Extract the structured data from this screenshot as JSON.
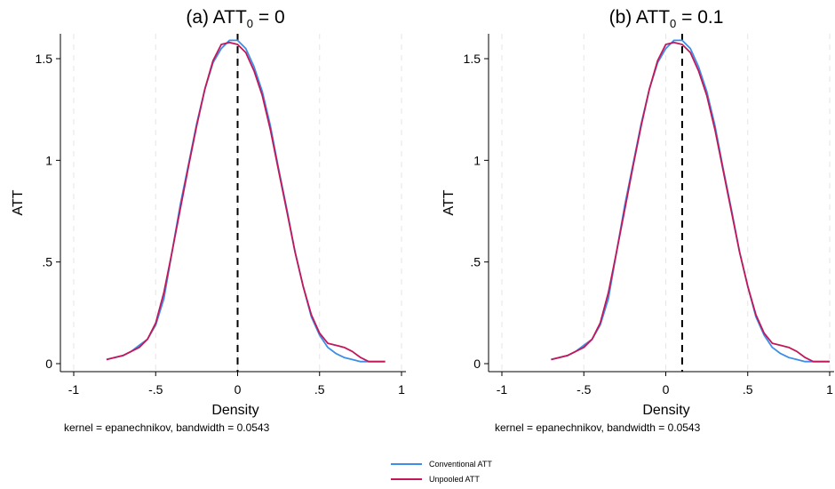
{
  "chart_data": [
    {
      "type": "line",
      "title": {
        "prefix": "(a) ATT",
        "subscript": "0",
        "suffix": " = 0"
      },
      "xlabel": "Density",
      "ylabel": "ATT",
      "xlim": [
        -1,
        1
      ],
      "ylim": [
        0,
        1.65
      ],
      "x_ticks": [
        -1,
        -0.5,
        0,
        0.5,
        1
      ],
      "x_tick_labels": [
        "-1",
        "-.5",
        "0",
        ".5",
        "1"
      ],
      "y_ticks": [
        0,
        0.5,
        1,
        1.5
      ],
      "y_tick_labels": [
        "0",
        ".5",
        "1",
        "1.5"
      ],
      "vertical_reference_line": 0,
      "note": "kernel = epanechnikov, bandwidth = 0.0543",
      "grid": "dashed vertical gridlines at x ticks",
      "series": [
        {
          "name": "Conventional ATT",
          "color": "#3d8ee8",
          "x": [
            -0.8,
            -0.75,
            -0.7,
            -0.65,
            -0.6,
            -0.55,
            -0.5,
            -0.45,
            -0.4,
            -0.35,
            -0.3,
            -0.25,
            -0.2,
            -0.15,
            -0.1,
            -0.05,
            0,
            0.05,
            0.1,
            0.15,
            0.2,
            0.25,
            0.3,
            0.35,
            0.4,
            0.45,
            0.5,
            0.55,
            0.6,
            0.65,
            0.7,
            0.75,
            0.8,
            0.85,
            0.9
          ],
          "y": [
            0.02,
            0.03,
            0.04,
            0.06,
            0.09,
            0.12,
            0.19,
            0.32,
            0.55,
            0.78,
            0.98,
            1.18,
            1.35,
            1.48,
            1.55,
            1.59,
            1.59,
            1.55,
            1.46,
            1.34,
            1.17,
            0.96,
            0.76,
            0.55,
            0.38,
            0.23,
            0.14,
            0.08,
            0.05,
            0.03,
            0.02,
            0.01,
            0.01,
            0.01,
            0.01
          ]
        },
        {
          "name": "Unpooled ATT",
          "color": "#c2185b",
          "x": [
            -0.8,
            -0.75,
            -0.7,
            -0.65,
            -0.6,
            -0.55,
            -0.5,
            -0.45,
            -0.4,
            -0.35,
            -0.3,
            -0.25,
            -0.2,
            -0.15,
            -0.1,
            -0.05,
            0,
            0.05,
            0.1,
            0.15,
            0.2,
            0.25,
            0.3,
            0.35,
            0.4,
            0.45,
            0.5,
            0.55,
            0.6,
            0.65,
            0.7,
            0.75,
            0.8,
            0.85,
            0.9
          ],
          "y": [
            0.02,
            0.03,
            0.04,
            0.06,
            0.08,
            0.12,
            0.2,
            0.35,
            0.55,
            0.76,
            0.97,
            1.17,
            1.35,
            1.49,
            1.57,
            1.58,
            1.57,
            1.53,
            1.44,
            1.32,
            1.15,
            0.95,
            0.75,
            0.55,
            0.38,
            0.24,
            0.15,
            0.1,
            0.09,
            0.08,
            0.06,
            0.03,
            0.01,
            0.01,
            0.01
          ]
        }
      ]
    },
    {
      "type": "line",
      "title": {
        "prefix": "(b) ATT",
        "subscript": "0",
        "suffix": " = 0.1"
      },
      "xlabel": "Density",
      "ylabel": "ATT",
      "xlim": [
        -1,
        1
      ],
      "ylim": [
        0,
        1.65
      ],
      "x_ticks": [
        -1,
        -0.5,
        0,
        0.5,
        1
      ],
      "x_tick_labels": [
        "-1",
        "-.5",
        "0",
        ".5",
        "1"
      ],
      "y_ticks": [
        0,
        0.5,
        1,
        1.5
      ],
      "y_tick_labels": [
        "0",
        ".5",
        "1",
        "1.5"
      ],
      "vertical_reference_line": 0.1,
      "note": "kernel = epanechnikov, bandwidth = 0.0543",
      "grid": "dashed vertical gridlines at x ticks",
      "series": [
        {
          "name": "Conventional ATT",
          "color": "#3d8ee8",
          "x": [
            -0.7,
            -0.65,
            -0.6,
            -0.55,
            -0.5,
            -0.45,
            -0.4,
            -0.35,
            -0.3,
            -0.25,
            -0.2,
            -0.15,
            -0.1,
            -0.05,
            0,
            0.05,
            0.1,
            0.15,
            0.2,
            0.25,
            0.3,
            0.35,
            0.4,
            0.45,
            0.5,
            0.55,
            0.6,
            0.65,
            0.7,
            0.75,
            0.8,
            0.85,
            0.9,
            0.95,
            1.0
          ],
          "y": [
            0.02,
            0.03,
            0.04,
            0.06,
            0.09,
            0.12,
            0.19,
            0.32,
            0.55,
            0.78,
            0.98,
            1.18,
            1.35,
            1.48,
            1.55,
            1.59,
            1.59,
            1.55,
            1.46,
            1.34,
            1.17,
            0.96,
            0.76,
            0.55,
            0.38,
            0.23,
            0.14,
            0.08,
            0.05,
            0.03,
            0.02,
            0.01,
            0.01,
            0.01,
            0.01
          ]
        },
        {
          "name": "Unpooled ATT",
          "color": "#c2185b",
          "x": [
            -0.7,
            -0.65,
            -0.6,
            -0.55,
            -0.5,
            -0.45,
            -0.4,
            -0.35,
            -0.3,
            -0.25,
            -0.2,
            -0.15,
            -0.1,
            -0.05,
            0,
            0.05,
            0.1,
            0.15,
            0.2,
            0.25,
            0.3,
            0.35,
            0.4,
            0.45,
            0.5,
            0.55,
            0.6,
            0.65,
            0.7,
            0.75,
            0.8,
            0.85,
            0.9,
            0.95,
            1.0
          ],
          "y": [
            0.02,
            0.03,
            0.04,
            0.06,
            0.08,
            0.12,
            0.2,
            0.35,
            0.55,
            0.76,
            0.97,
            1.17,
            1.35,
            1.49,
            1.57,
            1.58,
            1.57,
            1.53,
            1.44,
            1.32,
            1.15,
            0.95,
            0.75,
            0.55,
            0.38,
            0.24,
            0.15,
            0.1,
            0.09,
            0.08,
            0.06,
            0.03,
            0.01,
            0.01,
            0.01
          ]
        }
      ]
    }
  ],
  "legend": {
    "placement": "bottom-center",
    "items": [
      {
        "label": "Conventional ATT",
        "color": "#3d8ee8"
      },
      {
        "label": "Unpooled ATT",
        "color": "#c2185b"
      }
    ]
  }
}
